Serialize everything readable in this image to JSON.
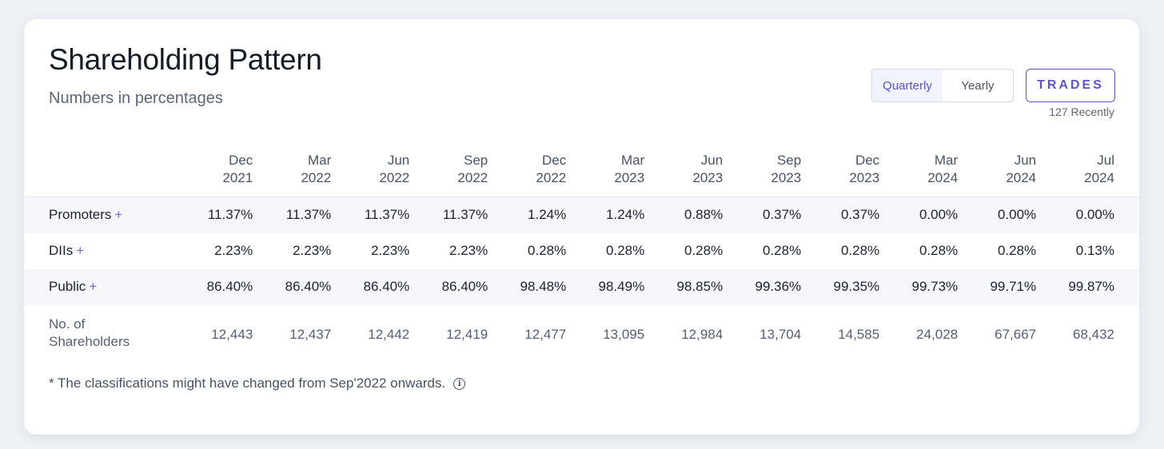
{
  "header": {
    "title": "Shareholding Pattern",
    "subtitle": "Numbers in percentages"
  },
  "period_toggle": {
    "options": [
      "Quarterly",
      "Yearly"
    ],
    "selected": "Quarterly"
  },
  "trades": {
    "label": "TRADES",
    "sub_label": "127 Recently"
  },
  "table": {
    "columns": [
      {
        "month": "Dec",
        "year": "2021"
      },
      {
        "month": "Mar",
        "year": "2022"
      },
      {
        "month": "Jun",
        "year": "2022"
      },
      {
        "month": "Sep",
        "year": "2022"
      },
      {
        "month": "Dec",
        "year": "2022"
      },
      {
        "month": "Mar",
        "year": "2023"
      },
      {
        "month": "Jun",
        "year": "2023"
      },
      {
        "month": "Sep",
        "year": "2023"
      },
      {
        "month": "Dec",
        "year": "2023"
      },
      {
        "month": "Mar",
        "year": "2024"
      },
      {
        "month": "Jun",
        "year": "2024"
      },
      {
        "month": "Jul",
        "year": "2024"
      }
    ],
    "rows": [
      {
        "label": "Promoters",
        "expandable": "+",
        "values": [
          "11.37%",
          "11.37%",
          "11.37%",
          "11.37%",
          "1.24%",
          "1.24%",
          "0.88%",
          "0.37%",
          "0.37%",
          "0.00%",
          "0.00%",
          "0.00%"
        ]
      },
      {
        "label": "DIIs",
        "expandable": "+",
        "values": [
          "2.23%",
          "2.23%",
          "2.23%",
          "2.23%",
          "0.28%",
          "0.28%",
          "0.28%",
          "0.28%",
          "0.28%",
          "0.28%",
          "0.28%",
          "0.13%"
        ]
      },
      {
        "label": "Public",
        "expandable": "+",
        "values": [
          "86.40%",
          "86.40%",
          "86.40%",
          "86.40%",
          "98.48%",
          "98.49%",
          "98.85%",
          "99.36%",
          "99.35%",
          "99.73%",
          "99.71%",
          "99.87%"
        ]
      }
    ],
    "shareholders": {
      "label_line1": "No. of",
      "label_line2": "Shareholders",
      "values": [
        "12,443",
        "12,437",
        "12,442",
        "12,419",
        "12,477",
        "13,095",
        "12,984",
        "13,704",
        "14,585",
        "24,028",
        "67,667",
        "68,432"
      ]
    }
  },
  "footnote": {
    "text": "* The classifications might have changed from Sep'2022 onwards.",
    "icon": "info-icon"
  }
}
